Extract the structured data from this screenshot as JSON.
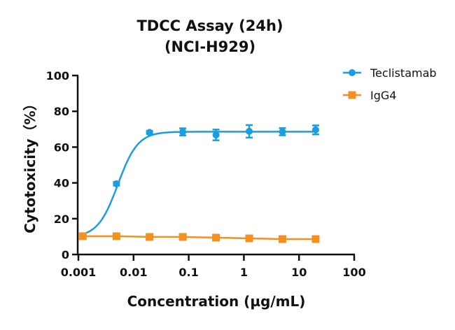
{
  "chart_data": {
    "type": "line",
    "title": [
      "TDCC Assay (24h)",
      "(NCI-H929)"
    ],
    "xlabel": "Concentration (µg/mL)",
    "ylabel": "Cytotoxicity（%）",
    "xscale": "log",
    "xlim": [
      0.001,
      100
    ],
    "ylim": [
      0,
      100
    ],
    "xticks": [
      0.001,
      0.01,
      0.1,
      1,
      10,
      100
    ],
    "xtick_labels": [
      "0.001",
      "0.01",
      "0.1",
      "1",
      "10",
      "100"
    ],
    "yticks": [
      0,
      20,
      40,
      60,
      80,
      100
    ],
    "ytick_labels": [
      "0",
      "20",
      "40",
      "60",
      "80",
      "100"
    ],
    "grid": false,
    "legend_position": "top-right",
    "x": [
      0.0012,
      0.0049,
      0.0195,
      0.078,
      0.3125,
      1.25,
      5,
      20
    ],
    "series": [
      {
        "name": "Teclistamab",
        "color": "#1a9ee0",
        "marker": "circle",
        "fit": "sigmoidal",
        "values": [
          10.2,
          39.5,
          68.2,
          68.5,
          66.8,
          68.8,
          68.6,
          69.6
        ],
        "errors": [
          0.8,
          1.0,
          0.8,
          2.0,
          3.0,
          3.5,
          2.0,
          2.5
        ]
      },
      {
        "name": "IgG4",
        "color": "#f39020",
        "marker": "square",
        "fit": "line",
        "values": [
          10.2,
          10.2,
          9.8,
          9.8,
          9.4,
          9.0,
          8.6,
          8.6
        ],
        "errors": [
          0.5,
          0.5,
          0.5,
          0.5,
          0.5,
          0.5,
          0.5,
          0.5
        ]
      }
    ]
  }
}
